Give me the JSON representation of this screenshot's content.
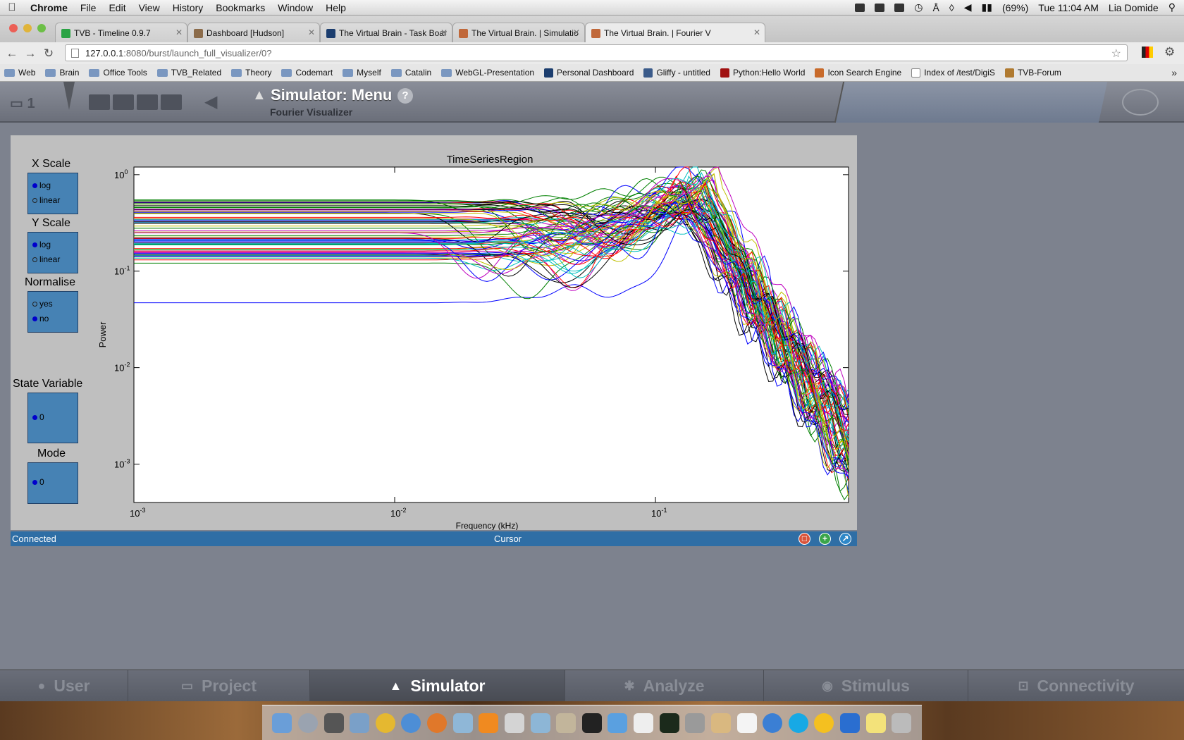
{
  "menubar": {
    "app": "Chrome",
    "items": [
      "File",
      "Edit",
      "View",
      "History",
      "Bookmarks",
      "Window",
      "Help"
    ],
    "battery": "(69%)",
    "clock": "Tue 11:04 AM",
    "user": "Lia Domide"
  },
  "tabs": [
    {
      "label": "TVB - Timeline 0.9.7",
      "color": "#2aa344"
    },
    {
      "label": "Dashboard [Hudson]",
      "color": "#8b6b4a"
    },
    {
      "label": "The Virtual Brain - Task Boar",
      "color": "#1b3d6e"
    },
    {
      "label": "The Virtual Brain. | Simulatio",
      "color": "#c0683a"
    },
    {
      "label": "The Virtual Brain. | Fourier V",
      "color": "#c0683a"
    }
  ],
  "address": {
    "host": "127.0.0.1",
    "path": ":8080/burst/launch_full_visualizer/0?"
  },
  "bookmarks": [
    {
      "label": "Web",
      "type": "folder"
    },
    {
      "label": "Brain",
      "type": "folder"
    },
    {
      "label": "Office Tools",
      "type": "folder"
    },
    {
      "label": "TVB_Related",
      "type": "folder"
    },
    {
      "label": "Theory",
      "type": "folder"
    },
    {
      "label": "Codemart",
      "type": "folder"
    },
    {
      "label": "Myself",
      "type": "folder"
    },
    {
      "label": "Catalin",
      "type": "folder"
    },
    {
      "label": "WebGL-Presentation",
      "type": "folder"
    },
    {
      "label": "Personal Dashboard",
      "type": "page"
    },
    {
      "label": "Gliffy - untitled",
      "type": "page"
    },
    {
      "label": "Python:Hello World",
      "type": "page"
    },
    {
      "label": "Icon Search Engine",
      "type": "page"
    },
    {
      "label": "Index of /test/DigiS",
      "type": "page"
    },
    {
      "label": "TVB-Forum",
      "type": "page"
    }
  ],
  "tvb_header": {
    "project_number": "1",
    "title": "Simulator: Menu",
    "subtitle": "Fourier Visualizer",
    "help": "?"
  },
  "controls": {
    "x_scale": {
      "label": "X Scale",
      "options": [
        "log",
        "linear"
      ],
      "selected": "log"
    },
    "y_scale": {
      "label": "Y Scale",
      "options": [
        "log",
        "linear"
      ],
      "selected": "log"
    },
    "normalise": {
      "label": "Normalise",
      "options": [
        "yes",
        "no"
      ],
      "selected": "no"
    },
    "state_variable": {
      "label": "State Variable",
      "options": [
        "0"
      ],
      "selected": "0"
    },
    "mode": {
      "label": "Mode",
      "options": [
        "0"
      ],
      "selected": "0"
    }
  },
  "chart_data": {
    "type": "line",
    "title": "TimeSeriesRegion",
    "xlabel": "Frequency (kHz)",
    "ylabel": "Power",
    "x_scale": "log",
    "y_scale": "log",
    "xlim": [
      0.001,
      0.55
    ],
    "ylim": [
      0.0004,
      1.2
    ],
    "x_ticks": [
      {
        "value": 0.001,
        "base": "10",
        "exp": "-3"
      },
      {
        "value": 0.01,
        "base": "10",
        "exp": "-2"
      },
      {
        "value": 0.1,
        "base": "10",
        "exp": "-1"
      }
    ],
    "y_ticks": [
      {
        "value": 1,
        "base": "10",
        "exp": "0"
      },
      {
        "value": 0.1,
        "base": "10",
        "exp": "-1"
      },
      {
        "value": 0.01,
        "base": "10",
        "exp": "-2"
      },
      {
        "value": 0.001,
        "base": "10",
        "exp": "-3"
      }
    ],
    "grid": false,
    "series_count": 76,
    "low_freq_power_range": [
      0.047,
      0.55
    ],
    "peak_frequency": 0.16,
    "peak_power_range": [
      0.35,
      1.15
    ],
    "high_freq_power_at_xmax_range": [
      0.0005,
      0.005
    ],
    "colors": [
      "#0000ff",
      "#008000",
      "#ff0000",
      "#00bfbf",
      "#bf00bf",
      "#bfbf00",
      "#000000"
    ]
  },
  "status": {
    "left": "Connected",
    "center": "Cursor"
  },
  "bottom_nav": [
    {
      "label": "User",
      "icon": "user-icon",
      "active": false
    },
    {
      "label": "Project",
      "icon": "project-icon",
      "active": false
    },
    {
      "label": "Simulator",
      "icon": "rocket-icon",
      "active": true
    },
    {
      "label": "Analyze",
      "icon": "gear-icon",
      "active": false
    },
    {
      "label": "Stimulus",
      "icon": "pin-icon",
      "active": false
    },
    {
      "label": "Connectivity",
      "icon": "connectivity-icon",
      "active": false
    }
  ]
}
